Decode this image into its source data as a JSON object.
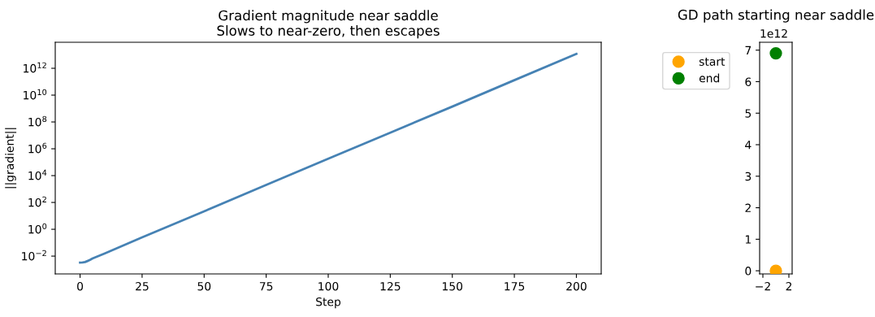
{
  "chart_data": [
    {
      "type": "line",
      "title": "Gradient magnitude near saddle",
      "subtitle": "Slows to near-zero, then escapes",
      "xlabel": "Step",
      "ylabel": "||gradient||",
      "log": "y",
      "grid": false,
      "legend": false,
      "x": [
        0,
        1,
        2,
        3,
        4,
        5,
        10,
        25,
        50,
        75,
        100,
        125,
        150,
        175,
        200
      ],
      "series": [
        {
          "color": "#4682b4",
          "values": [
            0.0033,
            0.0034,
            0.0036,
            0.0043,
            0.0052,
            0.0066,
            0.016,
            0.25,
            22,
            2000,
            180000,
            16000000,
            1400000000,
            130000000000,
            12000000000000
          ]
        }
      ],
      "xlim": [
        -10,
        210
      ],
      "xticks": [
        0,
        25,
        50,
        75,
        100,
        125,
        150,
        175,
        200
      ],
      "ylim": [
        0.00047,
        87000000000000.0
      ],
      "yticks": [
        {
          "value": 0.01,
          "label": "10$^{−2}$"
        },
        {
          "value": 1,
          "label": "10$^{0}$"
        },
        {
          "value": 100,
          "label": "10$^{2}$"
        },
        {
          "value": 10000,
          "label": "10$^{4}$"
        },
        {
          "value": 1000000,
          "label": "10$^{6}$"
        },
        {
          "value": 100000000,
          "label": "10$^{8}$"
        },
        {
          "value": 10000000000,
          "label": "10$^{10}$"
        },
        {
          "value": 1000000000000,
          "label": "10$^{12}$"
        }
      ]
    },
    {
      "type": "scatter",
      "title": "GD path starting near saddle",
      "legend": "top left",
      "grid": false,
      "series": [
        {
          "name": "start",
          "color": "#ffa500",
          "x": [
            0
          ],
          "values": [
            0
          ]
        },
        {
          "name": "end",
          "color": "#008000",
          "x": [
            0
          ],
          "values": [
            6.9
          ]
        }
      ],
      "xlim": [
        -2.5,
        2.5
      ],
      "xticks": [
        {
          "value": -2,
          "label": "−2"
        },
        2
      ],
      "ylim": [
        -0.1,
        7.25
      ],
      "yticks": [
        0,
        1,
        2,
        3,
        4,
        5,
        6,
        7
      ],
      "annotations": [
        "1e12"
      ]
    }
  ]
}
